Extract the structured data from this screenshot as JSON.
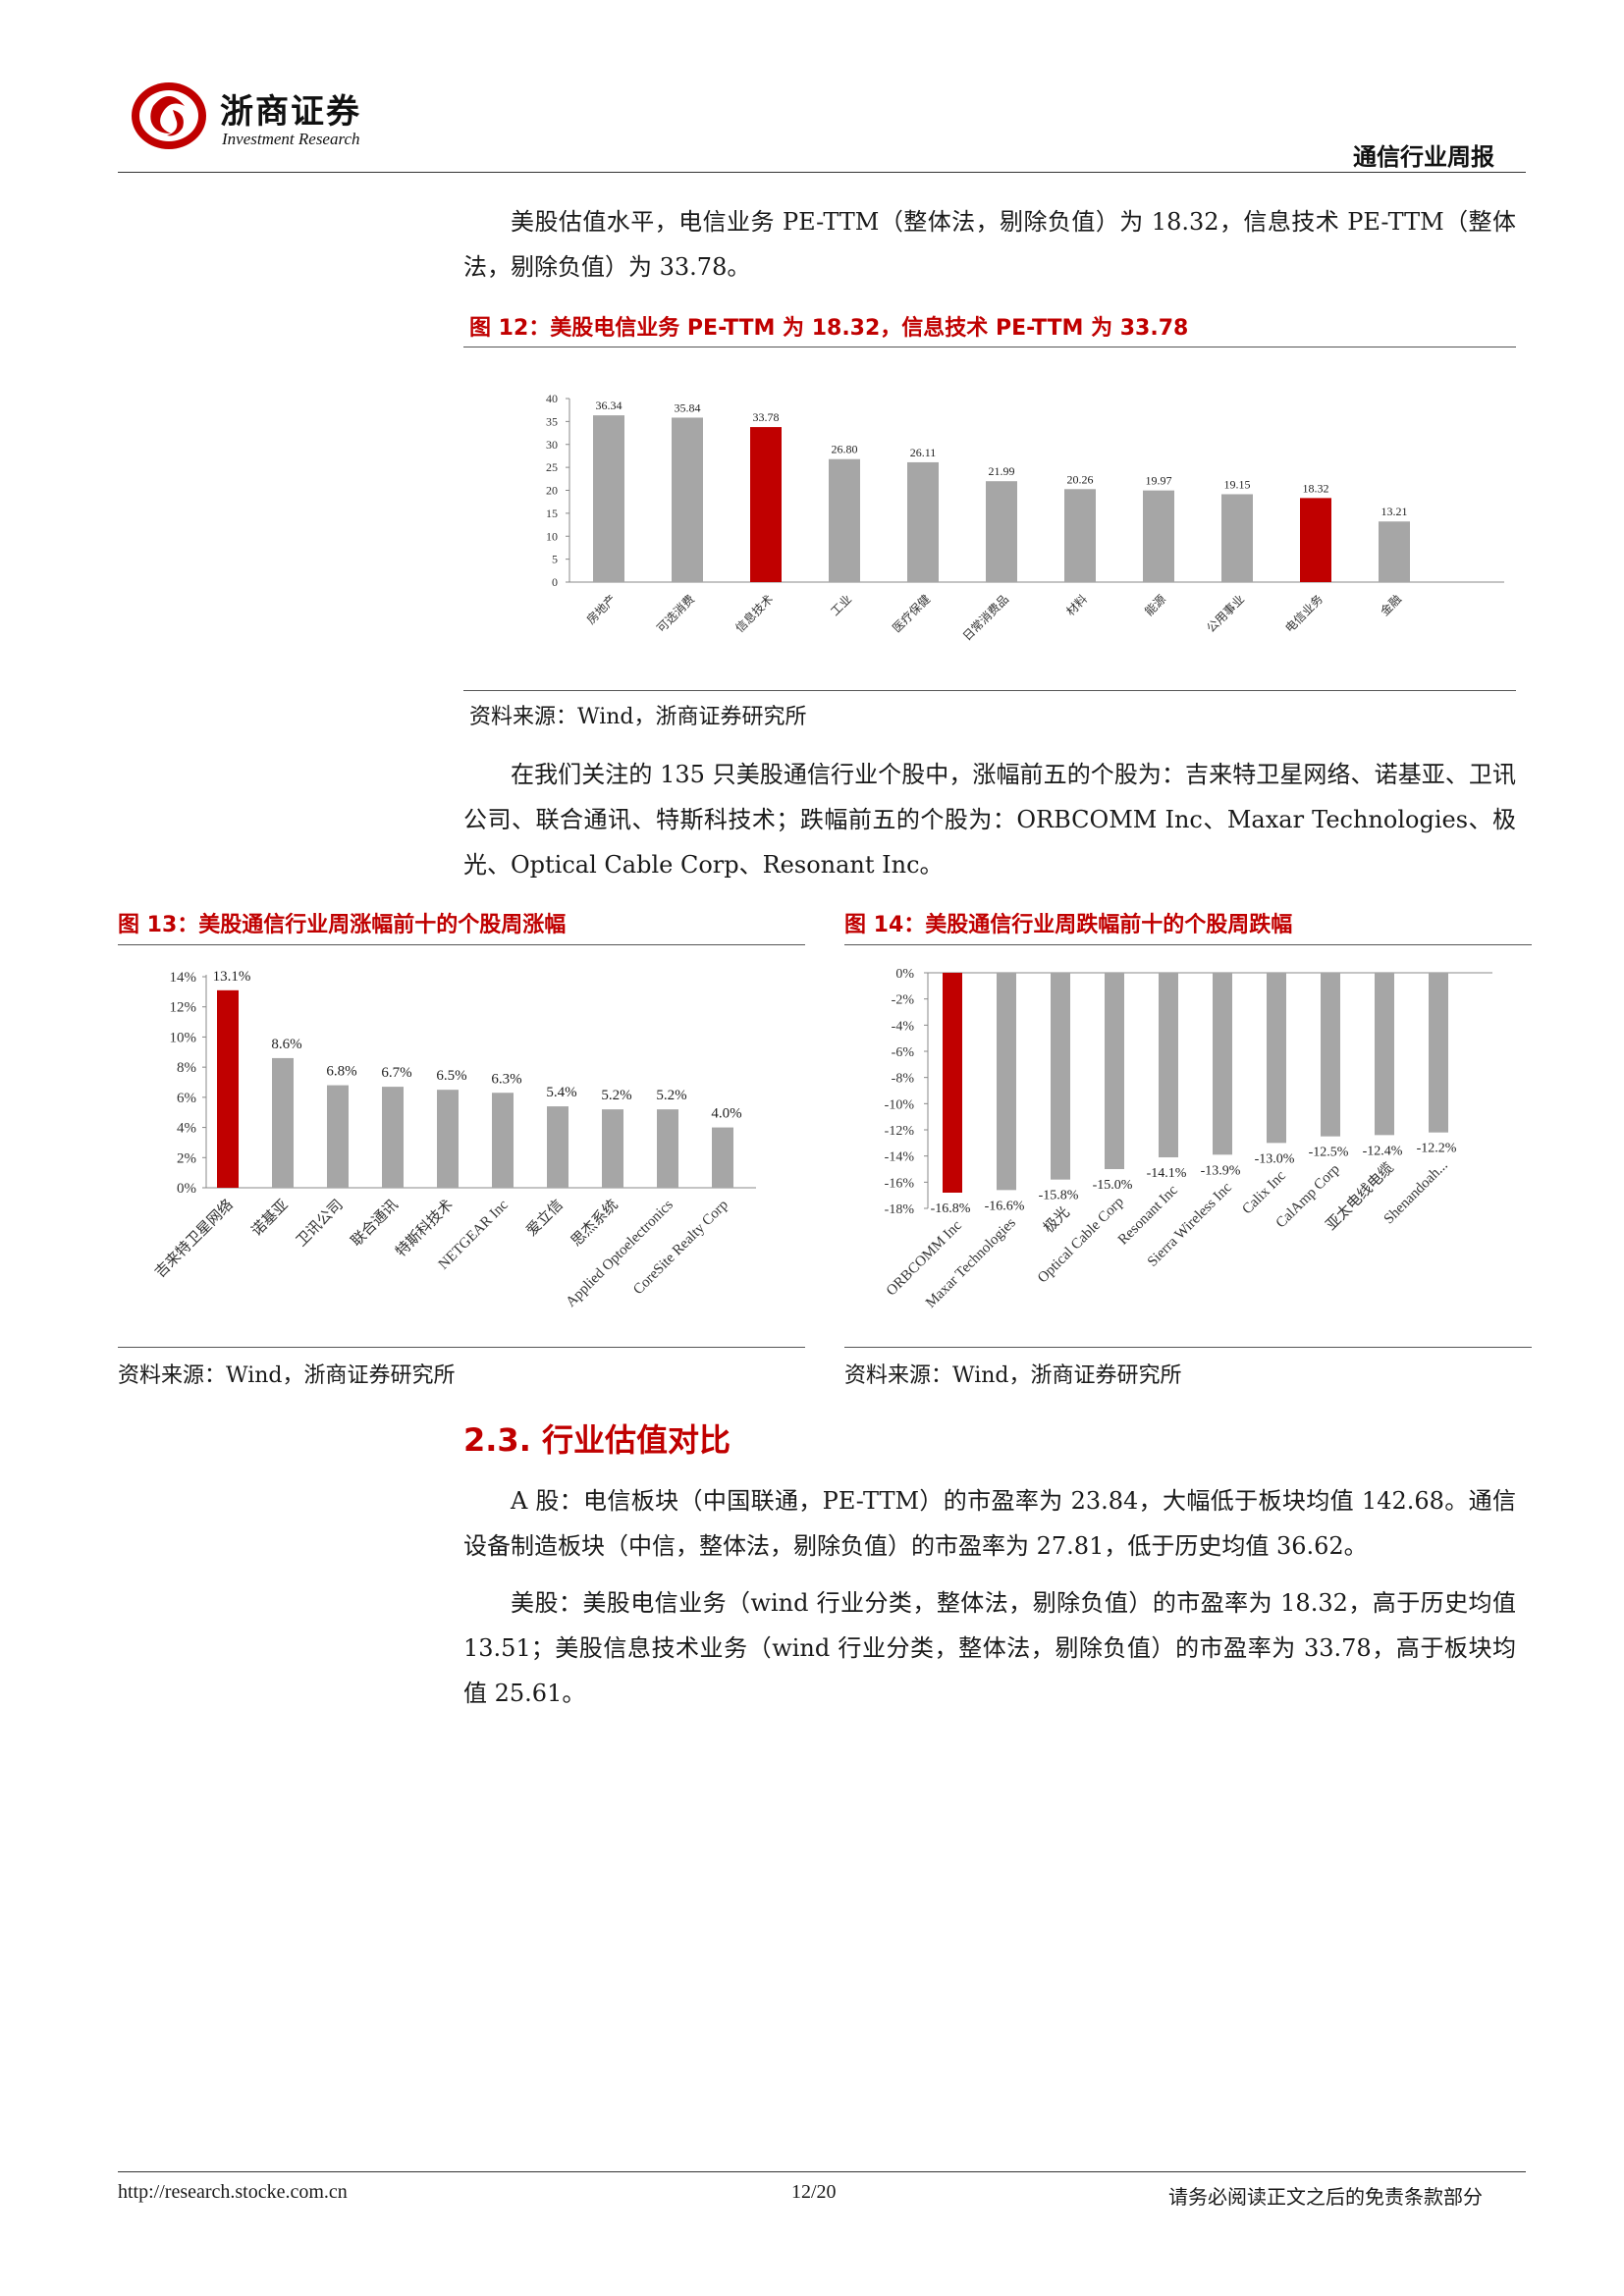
{
  "header": {
    "brand_cn": "浙商证券",
    "brand_en": "Investment Research",
    "section": "通信行业周报"
  },
  "para1": "美股估值水平，电信业务 PE-TTM（整体法，剔除负值）为 18.32，信息技术 PE-TTM（整体法，剔除负值）为 33.78。",
  "fig12": {
    "title": "图 12：美股电信业务 PE-TTM 为 18.32，信息技术 PE-TTM 为 33.78",
    "source": "资料来源：Wind，浙商证券研究所"
  },
  "para2": "在我们关注的 135 只美股通信行业个股中，涨幅前五的个股为：吉来特卫星网络、诺基亚、卫讯公司、联合通讯、特斯科技术；跌幅前五的个股为：ORBCOMM Inc、Maxar Technologies、极光、Optical Cable Corp、Resonant Inc。",
  "fig13": {
    "title": "图 13：美股通信行业周涨幅前十的个股周涨幅",
    "source": "资料来源：Wind，浙商证券研究所"
  },
  "fig14": {
    "title": "图 14：美股通信行业周跌幅前十的个股周跌幅",
    "source": "资料来源：Wind，浙商证券研究所"
  },
  "section_heading": "2.3. 行业估值对比",
  "para3": "A 股：电信板块（中国联通，PE-TTM）的市盈率为 23.84，大幅低于板块均值 142.68。通信设备制造板块（中信，整体法，剔除负值）的市盈率为 27.81，低于历史均值 36.62。",
  "para4": "美股：美股电信业务（wind 行业分类，整体法，剔除负值）的市盈率为 18.32，高于历史均值 13.51；美股信息技术业务（wind 行业分类，整体法，剔除负值）的市盈率为 33.78，高于板块均值 25.61。",
  "footer": {
    "url": "http://research.stocke.com.cn",
    "page": "12/20",
    "disclaimer": "请务必阅读正文之后的免责条款部分"
  },
  "colors": {
    "accent": "#c00000",
    "bar_gray": "#a6a6a6",
    "bar_red": "#c00000"
  },
  "chart_data": [
    {
      "type": "bar",
      "categories": [
        "房地产",
        "可选消费",
        "信息技术",
        "工业",
        "医疗保健",
        "日常消费品",
        "材料",
        "能源",
        "公用事业",
        "电信业务",
        "金融"
      ],
      "values": [
        36.34,
        35.84,
        33.78,
        26.8,
        26.11,
        21.99,
        20.26,
        19.97,
        19.15,
        18.32,
        13.21
      ],
      "value_labels": [
        "36.34",
        "35.84",
        "33.78",
        "26.80",
        "26.11",
        "21.99",
        "20.26",
        "19.97",
        "19.15",
        "18.32",
        "13.21"
      ],
      "highlight": [
        2,
        9
      ],
      "yticks": [
        "40",
        "35",
        "30",
        "25",
        "20",
        "15",
        "10",
        "5",
        "0"
      ],
      "ylim": [
        0,
        40
      ]
    },
    {
      "type": "bar",
      "categories": [
        "吉来特卫星网络",
        "诺基亚",
        "卫讯公司",
        "联合通讯",
        "特斯科技术",
        "NETGEAR Inc",
        "爱立信",
        "思杰系统",
        "Applied Optoelectronics",
        "CoreSite Realty Corp"
      ],
      "values": [
        13.1,
        8.6,
        6.8,
        6.7,
        6.5,
        6.3,
        5.4,
        5.2,
        5.2,
        4.0
      ],
      "value_labels": [
        "13.1%",
        "8.6%",
        "6.8%",
        "6.7%",
        "6.5%",
        "6.3%",
        "5.4%",
        "5.2%",
        "5.2%",
        "4.0%"
      ],
      "highlight": [
        0
      ],
      "yticks": [
        "14%",
        "12%",
        "10%",
        "8%",
        "6%",
        "4%",
        "2%",
        "0%"
      ],
      "ylim": [
        0,
        14
      ]
    },
    {
      "type": "bar",
      "categories": [
        "ORBCOMM Inc",
        "Maxar Technologies",
        "极光",
        "Optical Cable Corp",
        "Resonant Inc",
        "Sierra Wireless Inc",
        "Calix Inc",
        "CalAmp Corp",
        "亚太电线电缆",
        "Shenandoah..."
      ],
      "values": [
        -16.8,
        -16.6,
        -15.8,
        -15.0,
        -14.1,
        -13.9,
        -13.0,
        -12.5,
        -12.4,
        -12.2
      ],
      "value_labels": [
        "-16.8%",
        "-16.6%",
        "-15.8%",
        "-15.0%",
        "-14.1%",
        "-13.9%",
        "-13.0%",
        "-12.5%",
        "-12.4%",
        "-12.2%"
      ],
      "highlight": [
        0
      ],
      "yticks": [
        "0%",
        "-2%",
        "-4%",
        "-6%",
        "-8%",
        "-10%",
        "-12%",
        "-14%",
        "-16%",
        "-18%"
      ],
      "ylim": [
        -18,
        0
      ]
    }
  ]
}
